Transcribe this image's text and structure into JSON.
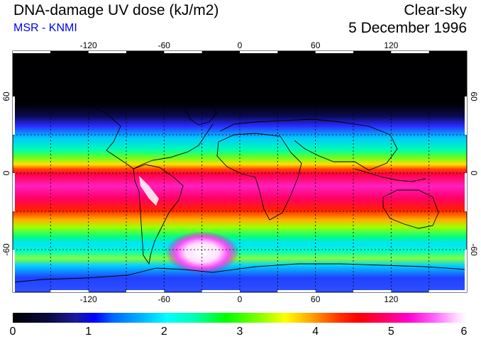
{
  "header": {
    "title": "DNA-damage UV dose (kJ/m2)",
    "subtitle": "MSR - KNMI",
    "condition": "Clear-sky",
    "date": "5 December 1996"
  },
  "map": {
    "lon_ticks": [
      "-120",
      "-60",
      "0",
      "60",
      "120"
    ],
    "lat_ticks": [
      "60",
      "0",
      "-60"
    ]
  },
  "colorbar": {
    "labels": [
      "0",
      "1",
      "2",
      "3",
      "4",
      "5",
      "6"
    ]
  },
  "colors": {
    "subtitle": "#0000ee"
  }
}
